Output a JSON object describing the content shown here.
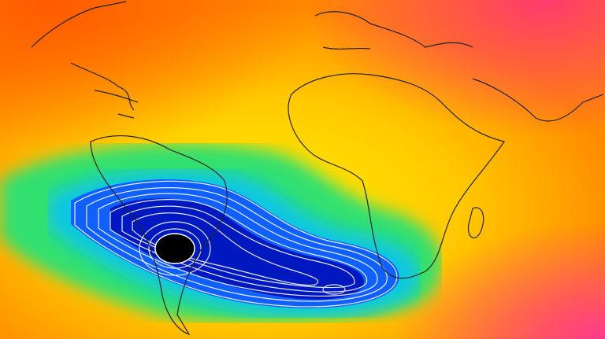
{
  "map": {
    "colors": {
      "outer_high": "#ff3a6e",
      "high": "#ff7a00",
      "mid_high": "#ffc400",
      "mid": "#ffee00",
      "mid_low": "#30e070",
      "low": "#10c8e0",
      "lower": "#1060ff",
      "lowest": "#0010b0",
      "minimum": "#000000",
      "contour": "#ffffff",
      "coastline": "#222222"
    }
  }
}
